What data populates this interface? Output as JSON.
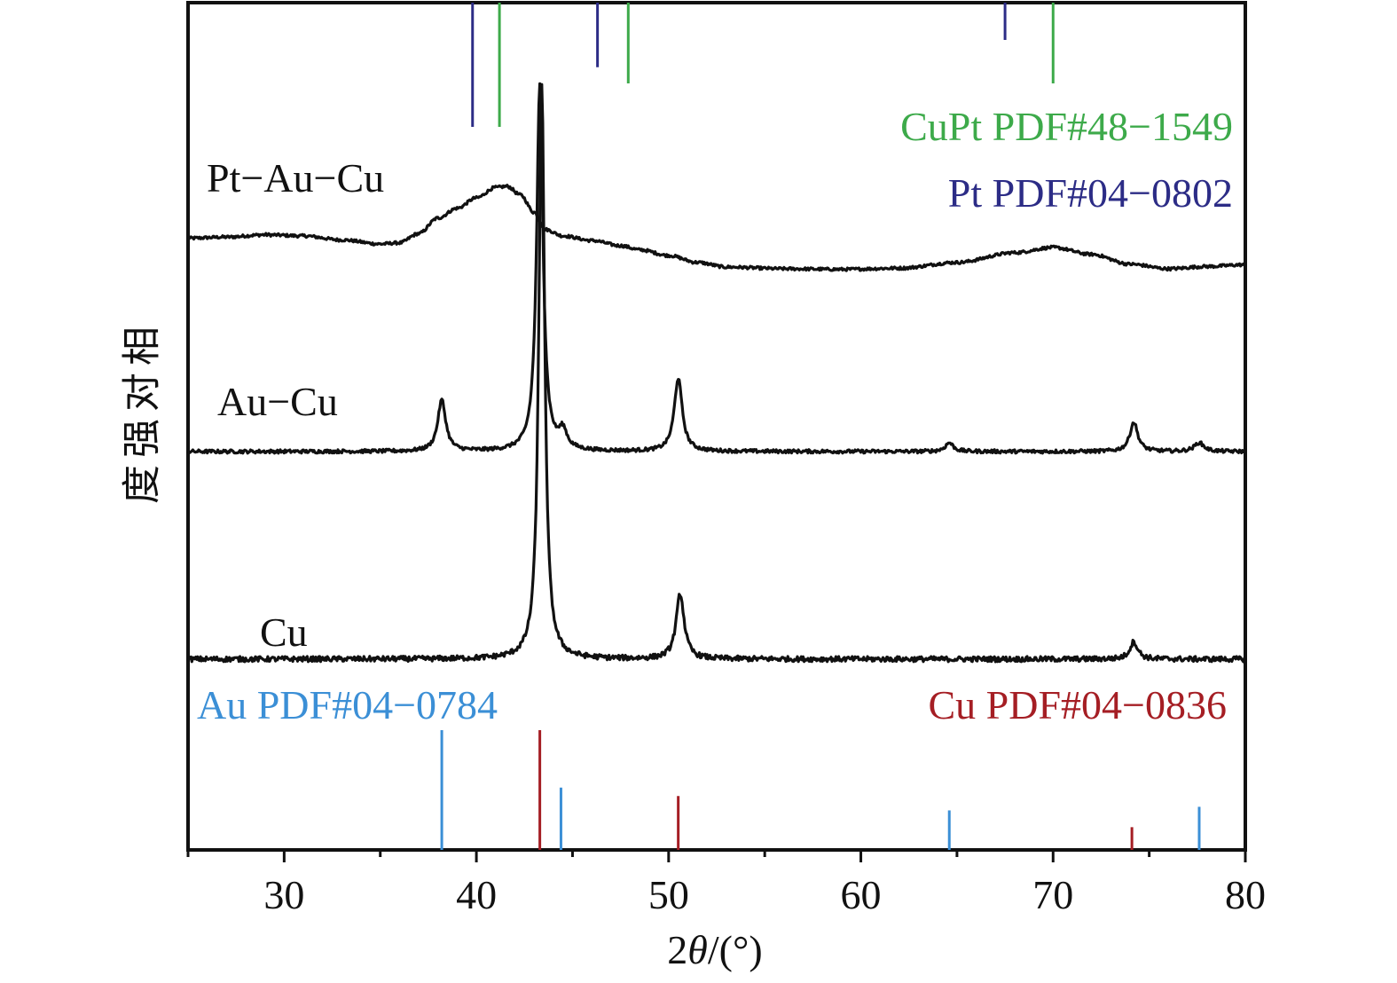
{
  "chart_data": {
    "type": "line",
    "title": "",
    "xlabel_prefix": "2",
    "xlabel_theta": "θ",
    "xlabel_suffix": "/(°)",
    "ylabel": "相对强度",
    "xlim": [
      25,
      80
    ],
    "x_ticks": [
      30,
      40,
      50,
      60,
      70,
      80
    ],
    "x_minor_ticks": [
      25,
      35,
      45,
      55,
      65,
      75
    ],
    "y_ticks_visible": false,
    "grid": false,
    "series": [
      {
        "name": "Pt−Au−Cu",
        "color": "#111111",
        "points": [
          [
            25,
            0.1
          ],
          [
            27,
            0.12
          ],
          [
            29,
            0.16
          ],
          [
            31,
            0.14
          ],
          [
            33,
            0.07
          ],
          [
            35,
            0.0
          ],
          [
            36,
            0.02
          ],
          [
            37,
            0.18
          ],
          [
            38,
            0.45
          ],
          [
            39,
            0.62
          ],
          [
            40,
            0.8
          ],
          [
            41,
            0.98
          ],
          [
            41.6,
            1.0
          ],
          [
            42.3,
            0.85
          ],
          [
            43,
            0.55
          ],
          [
            43.6,
            0.25
          ],
          [
            44.5,
            0.14
          ],
          [
            46,
            0.06
          ],
          [
            47.5,
            -0.03
          ],
          [
            48.5,
            -0.1
          ],
          [
            50,
            -0.2
          ],
          [
            51.5,
            -0.32
          ],
          [
            53,
            -0.4
          ],
          [
            56,
            -0.43
          ],
          [
            59,
            -0.44
          ],
          [
            62,
            -0.42
          ],
          [
            65,
            -0.32
          ],
          [
            68,
            -0.15
          ],
          [
            70,
            -0.06
          ],
          [
            72,
            -0.18
          ],
          [
            74,
            -0.35
          ],
          [
            76,
            -0.43
          ],
          [
            78,
            -0.39
          ],
          [
            80,
            -0.36
          ]
        ],
        "noise": 0.025
      },
      {
        "name": "Au−Cu",
        "color": "#111111",
        "baseline": 0,
        "peaks": [
          [
            38.2,
            0.35,
            0.25
          ],
          [
            43.3,
            2.5,
            0.2
          ],
          [
            44.5,
            0.12,
            0.25
          ],
          [
            50.5,
            0.5,
            0.25
          ],
          [
            64.6,
            0.06,
            0.25
          ],
          [
            74.2,
            0.2,
            0.25
          ],
          [
            77.6,
            0.06,
            0.3
          ]
        ],
        "noise": 0.012
      },
      {
        "name": "Cu",
        "color": "#111111",
        "baseline": 0,
        "peaks": [
          [
            43.4,
            2.65,
            0.18
          ],
          [
            50.6,
            0.3,
            0.25
          ],
          [
            74.2,
            0.08,
            0.25
          ]
        ],
        "noise": 0.012
      }
    ],
    "reference_patterns": [
      {
        "name": "CuPt PDF#48−1549",
        "color": "#3daa4a",
        "position": "top",
        "lines": [
          [
            41.2,
            1.0
          ],
          [
            47.9,
            0.65
          ],
          [
            70.0,
            0.65
          ]
        ]
      },
      {
        "name": "Pt PDF#04−0802",
        "color": "#2c2c86",
        "position": "top",
        "lines": [
          [
            39.8,
            1.0
          ],
          [
            46.3,
            0.52
          ],
          [
            67.5,
            0.3
          ]
        ]
      },
      {
        "name": "Au PDF#04−0784",
        "color": "#3b8fd6",
        "position": "bottom",
        "lines": [
          [
            38.2,
            1.0
          ],
          [
            44.4,
            0.52
          ],
          [
            64.6,
            0.33
          ],
          [
            77.6,
            0.36
          ]
        ]
      },
      {
        "name": "Cu PDF#04−0836",
        "color": "#a51e24",
        "position": "bottom",
        "lines": [
          [
            43.3,
            1.0
          ],
          [
            50.5,
            0.45
          ],
          [
            74.1,
            0.19
          ]
        ]
      }
    ]
  }
}
